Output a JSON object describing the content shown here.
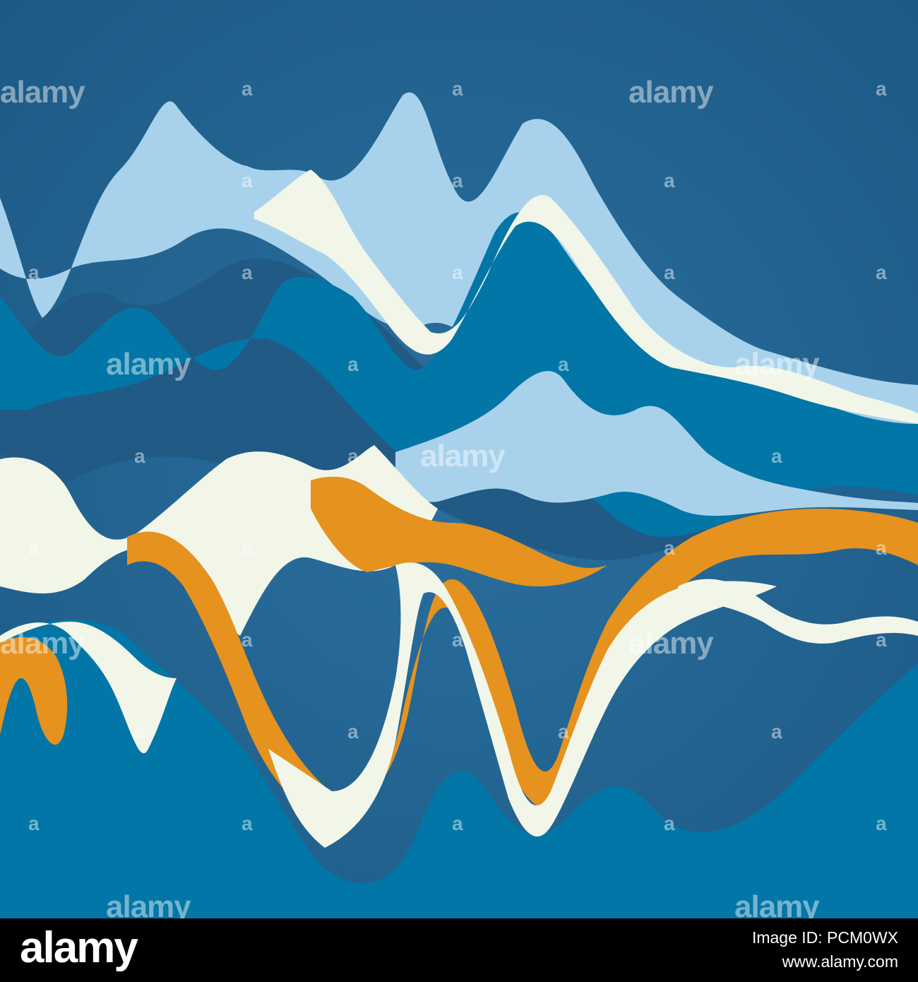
{
  "colors": {
    "background": "#1f5f8b",
    "band_light_blue": "#a8d2ec",
    "band_mid_blue": "#0276a7",
    "band_deep_blue": "#205a85",
    "band_cream": "#f1f6e9",
    "band_orange": "#e5921f",
    "footer": "#000000"
  },
  "watermark": {
    "text": "alamy",
    "glyph": "a"
  },
  "footer": {
    "brand": "alamy",
    "image_id_line": "Image ID: PCM0WX",
    "site_line": "www.alamy.com"
  }
}
